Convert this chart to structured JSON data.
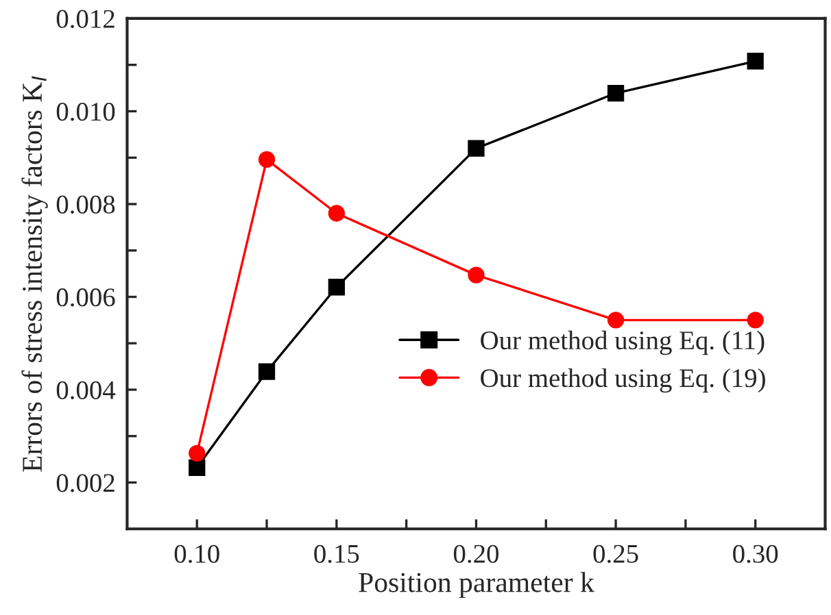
{
  "chart_data": {
    "type": "line",
    "xlabel": "Position parameter k",
    "ylabel": "Errors of stress intensity factors K$_{I}$",
    "x": [
      0.1,
      0.125,
      0.15,
      0.2,
      0.25,
      0.3
    ],
    "series": [
      {
        "name": "Our method using Eq. (11)",
        "color": "#000000",
        "marker": "square",
        "values": [
          0.00232,
          0.00439,
          0.00621,
          0.0092,
          0.01039,
          0.01108
        ]
      },
      {
        "name": "Our method using Eq. (19)",
        "color": "#ff0000",
        "marker": "circle",
        "values": [
          0.00263,
          0.00896,
          0.0078,
          0.00647,
          0.0055,
          0.0055
        ]
      }
    ],
    "xlim": [
      0.075,
      0.325
    ],
    "xticks": [
      {
        "value": 0.1,
        "label": "0.10"
      },
      {
        "value": 0.125,
        "label": null
      },
      {
        "value": 0.15,
        "label": "0.15"
      },
      {
        "value": 0.175,
        "label": null
      },
      {
        "value": 0.2,
        "label": "0.20"
      },
      {
        "value": 0.225,
        "label": null
      },
      {
        "value": 0.25,
        "label": "0.25"
      },
      {
        "value": 0.275,
        "label": null
      },
      {
        "value": 0.3,
        "label": "0.30"
      }
    ],
    "ylim": [
      0.001,
      0.012
    ],
    "yticks": [
      {
        "value": 0.002,
        "label": "0.002"
      },
      {
        "value": 0.003,
        "label": null
      },
      {
        "value": 0.004,
        "label": "0.004"
      },
      {
        "value": 0.005,
        "label": null
      },
      {
        "value": 0.006,
        "label": "0.006"
      },
      {
        "value": 0.007,
        "label": null
      },
      {
        "value": 0.008,
        "label": "0.008"
      },
      {
        "value": 0.009,
        "label": null
      },
      {
        "value": 0.01,
        "label": "0.010"
      },
      {
        "value": 0.011,
        "label": null
      },
      {
        "value": 0.012,
        "label": "0.012"
      }
    ],
    "legend": "lower right",
    "grid": false,
    "line_style": "solid"
  }
}
